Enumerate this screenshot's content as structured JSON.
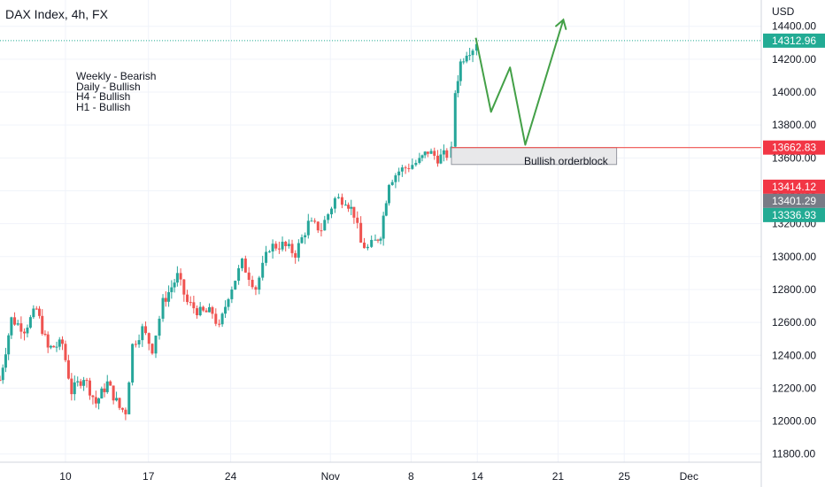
{
  "header": {
    "title": "DAX Index, 4h, FX"
  },
  "notes": [
    "Weekly - Bearish",
    "Daily - Bullish",
    "H4 - Bullish",
    "H1 - Bullish"
  ],
  "annotations": {
    "orderblock_label": "Bullish orderblock"
  },
  "chart_data": {
    "type": "candlestick",
    "title": "DAX Index, 4h, FX",
    "currency": "USD",
    "ylim": [
      11750,
      14560
    ],
    "xlim": [
      0,
      100
    ],
    "y_ticks": [
      "11800.00",
      "12000.00",
      "12200.00",
      "12400.00",
      "12600.00",
      "12800.00",
      "13000.00",
      "13200.00",
      "13400.00",
      "13600.00",
      "13800.00",
      "14000.00",
      "14200.00",
      "14400.00"
    ],
    "x_ticks": [
      {
        "label": "10",
        "x": 8.6
      },
      {
        "label": "17",
        "x": 19.5
      },
      {
        "label": "24",
        "x": 30.3
      },
      {
        "label": "Nov",
        "x": 43.4
      },
      {
        "label": "8",
        "x": 54.0
      },
      {
        "label": "14",
        "x": 62.7
      },
      {
        "label": "21",
        "x": 73.3
      },
      {
        "label": "25",
        "x": 82.0
      },
      {
        "label": "Dec",
        "x": 90.5
      }
    ],
    "price_path": [
      [
        0,
        12250
      ],
      [
        1.5,
        12620
      ],
      [
        3.2,
        12560
      ],
      [
        4.8,
        12680
      ],
      [
        6.3,
        12440
      ],
      [
        8.2,
        12470
      ],
      [
        9.4,
        12180
      ],
      [
        11.0,
        12270
      ],
      [
        12.6,
        12110
      ],
      [
        14.1,
        12230
      ],
      [
        15.7,
        12080
      ],
      [
        16.5,
        12060
      ],
      [
        17.4,
        12460
      ],
      [
        18.7,
        12560
      ],
      [
        20.0,
        12440
      ],
      [
        21.4,
        12720
      ],
      [
        23.3,
        12880
      ],
      [
        24.6,
        12720
      ],
      [
        26.3,
        12660
      ],
      [
        27.9,
        12660
      ],
      [
        28.8,
        12560
      ],
      [
        30.0,
        12770
      ],
      [
        31.8,
        12960
      ],
      [
        33.6,
        12810
      ],
      [
        35.4,
        13060
      ],
      [
        37.1,
        13070
      ],
      [
        38.8,
        13020
      ],
      [
        40.5,
        13200
      ],
      [
        42.2,
        13170
      ],
      [
        44.0,
        13350
      ],
      [
        45.4,
        13350
      ],
      [
        46.5,
        13260
      ],
      [
        47.4,
        13080
      ],
      [
        48.3,
        13050
      ],
      [
        49.3,
        13090
      ],
      [
        50.0,
        13140
      ],
      [
        51.1,
        13460
      ],
      [
        52.4,
        13520
      ],
      [
        53.7,
        13550
      ],
      [
        55.1,
        13580
      ],
      [
        56.2,
        13640
      ],
      [
        57.5,
        13600
      ],
      [
        58.7,
        13620
      ],
      [
        59.3,
        13640
      ],
      [
        59.8,
        14000
      ],
      [
        60.5,
        14180
      ],
      [
        61.3,
        14250
      ],
      [
        62.1,
        14270
      ],
      [
        62.6,
        14310
      ]
    ],
    "projection": {
      "points": [
        [
          62.5,
          14330
        ],
        [
          64.5,
          13880
        ],
        [
          67.0,
          14150
        ],
        [
          69.0,
          13680
        ],
        [
          74.0,
          14440
        ]
      ],
      "arrow_x": 74.0,
      "arrow_y": 14440
    },
    "orderblock": {
      "x_start": 59.3,
      "x_end": 81.0,
      "top": 13662.83,
      "bottom": 13560
    },
    "levels": {
      "current": "14312.96",
      "orderblock_line": "13662.83",
      "extra": [
        "13414.12",
        "13401.29",
        "13336.93"
      ]
    },
    "colors": {
      "up": "#26a69a",
      "down": "#ef5350",
      "projection": "#43a047",
      "orderblock_line": "#ef5350",
      "grid": "#f0f3fa",
      "current_line": "#22ab94",
      "label_current": "#22ab94",
      "label_red": "#f23645",
      "label_gray": "#787b86"
    }
  }
}
